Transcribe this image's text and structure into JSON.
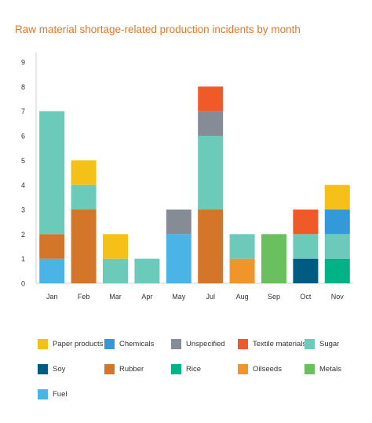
{
  "chart_data": {
    "type": "bar",
    "stacked": true,
    "title": "Raw material shortage-related production incidents by month",
    "categories": [
      "Jan",
      "Feb",
      "Mar",
      "Apr",
      "May",
      "Jul",
      "Aug",
      "Sep",
      "Oct",
      "Nov"
    ],
    "ylim": [
      0,
      9
    ],
    "yticks": [
      0,
      1,
      2,
      3,
      4,
      5,
      6,
      7,
      8,
      9
    ],
    "grid": false,
    "legend_position": "bottom",
    "series": [
      {
        "name": "Fuel",
        "color": "#4ab4e6",
        "values": [
          1,
          0,
          0,
          0,
          2,
          0,
          0,
          0,
          0,
          0
        ]
      },
      {
        "name": "Metals",
        "color": "#6abf5e",
        "values": [
          0,
          0,
          0,
          0,
          0,
          0,
          0,
          2,
          0,
          0
        ]
      },
      {
        "name": "Soy",
        "color": "#005b82",
        "values": [
          0,
          0,
          0,
          0,
          0,
          0,
          0,
          0,
          1,
          0
        ]
      },
      {
        "name": "Rice",
        "color": "#00b386",
        "values": [
          0,
          0,
          0,
          0,
          0,
          0,
          0,
          0,
          0,
          1
        ]
      },
      {
        "name": "Oilseeds",
        "color": "#f0952a",
        "values": [
          0,
          0,
          0,
          0,
          0,
          0,
          1,
          0,
          0,
          0
        ]
      },
      {
        "name": "Rubber",
        "color": "#d3762a",
        "values": [
          1,
          3,
          0,
          0,
          0,
          3,
          0,
          0,
          0,
          0
        ]
      },
      {
        "name": "Sugar",
        "color": "#6ccabb",
        "values": [
          5,
          1,
          1,
          1,
          0,
          3,
          1,
          0,
          1,
          1
        ]
      },
      {
        "name": "Unspecified",
        "color": "#868c96",
        "values": [
          0,
          0,
          0,
          0,
          1,
          1,
          0,
          0,
          0,
          0
        ]
      },
      {
        "name": "Textile materials",
        "color": "#f05a28",
        "values": [
          0,
          0,
          0,
          0,
          0,
          1,
          0,
          0,
          1,
          0
        ]
      },
      {
        "name": "Chemicals",
        "color": "#3499d8",
        "values": [
          0,
          0,
          0,
          0,
          0,
          0,
          0,
          0,
          0,
          1
        ]
      },
      {
        "name": "Paper products",
        "color": "#f5c118",
        "values": [
          0,
          1,
          1,
          0,
          0,
          0,
          0,
          0,
          0,
          1
        ]
      }
    ],
    "legend": [
      "Paper products",
      "Chemicals",
      "Unspecified",
      "Textile materials",
      "Sugar",
      "Soy",
      "Rubber",
      "Rice",
      "Oilseeds",
      "Metals",
      "Fuel"
    ]
  }
}
